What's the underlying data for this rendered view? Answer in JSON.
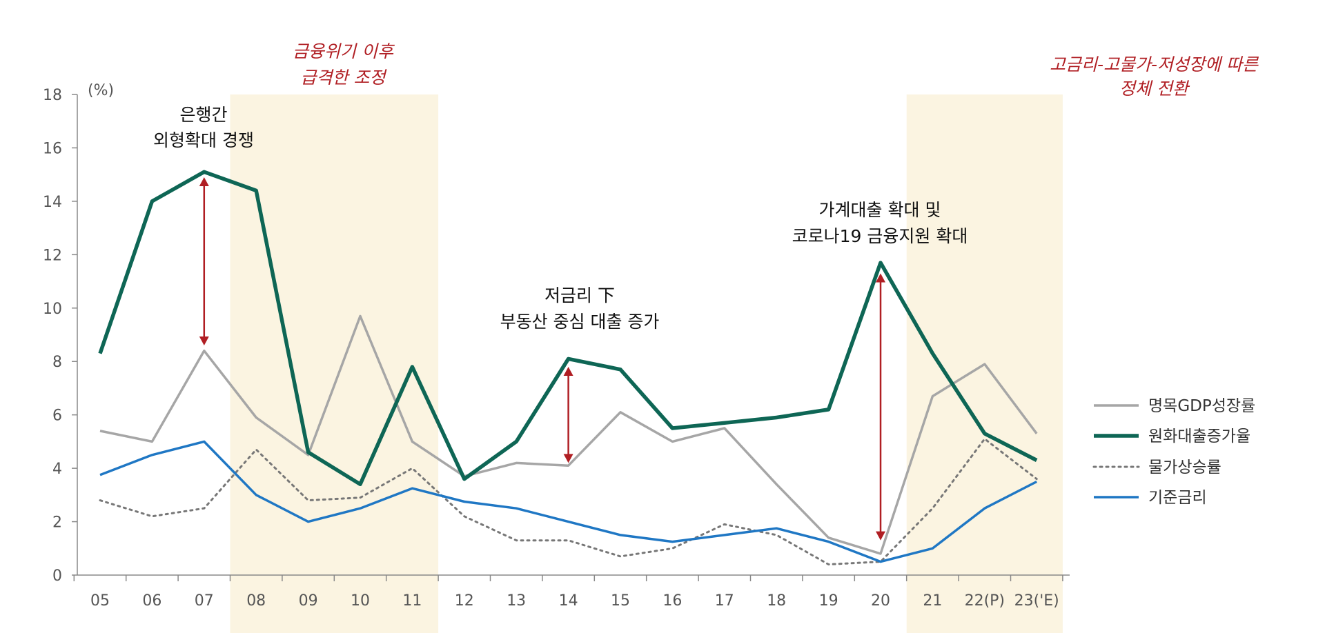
{
  "chart_data": {
    "type": "line",
    "y_unit": "(%)",
    "ylim": [
      0,
      18
    ],
    "y_ticks": [
      "0",
      "2",
      "4",
      "6",
      "8",
      "10",
      "12",
      "14",
      "16",
      "18"
    ],
    "categories": [
      "05",
      "06",
      "07",
      "08",
      "09",
      "10",
      "11",
      "12",
      "13",
      "14",
      "15",
      "16",
      "17",
      "18",
      "19",
      "20",
      "21",
      "22(P)",
      "23('E)"
    ],
    "series": [
      {
        "name": "명목GDP성장률",
        "color": "#a6a6a6",
        "style": "solid",
        "values": [
          5.4,
          5.0,
          8.4,
          5.9,
          4.5,
          9.7,
          5.0,
          3.7,
          4.2,
          4.1,
          6.1,
          5.0,
          5.5,
          3.4,
          1.4,
          0.8,
          6.7,
          7.9,
          5.3
        ]
      },
      {
        "name": "원화대출증가율",
        "color": "#0e6655",
        "style": "thick",
        "values": [
          8.3,
          14.0,
          15.1,
          14.4,
          4.6,
          3.4,
          7.8,
          3.6,
          5.0,
          8.1,
          7.7,
          5.5,
          5.7,
          5.9,
          6.2,
          11.7,
          8.3,
          5.3,
          4.3
        ]
      },
      {
        "name": "물가상승률",
        "color": "#777777",
        "style": "dotted",
        "values": [
          2.8,
          2.2,
          2.5,
          4.7,
          2.8,
          2.9,
          4.0,
          2.2,
          1.3,
          1.3,
          0.7,
          1.0,
          1.9,
          1.5,
          0.4,
          0.5,
          2.5,
          5.1,
          3.6
        ]
      },
      {
        "name": "기준금리",
        "color": "#1f77c4",
        "style": "solid",
        "values": [
          3.75,
          4.5,
          5.0,
          3.0,
          2.0,
          2.5,
          3.25,
          2.75,
          2.5,
          2.0,
          1.5,
          1.25,
          1.5,
          1.75,
          1.25,
          0.5,
          1.0,
          2.5,
          3.5
        ]
      }
    ],
    "shaded_periods": [
      {
        "from": "08",
        "to": "11"
      },
      {
        "from": "21",
        "to": "23('E)"
      }
    ],
    "arrows": [
      {
        "category": "07",
        "from": 8.6,
        "to": 14.9
      },
      {
        "category": "14",
        "from": 4.2,
        "to": 7.8
      },
      {
        "category": "20",
        "from": 1.3,
        "to": 11.3
      }
    ],
    "annotations": [
      {
        "id": "ann1",
        "lines": [
          "은행간",
          "외형확대 경쟁"
        ],
        "style": "black"
      },
      {
        "id": "ann2",
        "lines": [
          "저금리 下",
          "부동산 중심 대출 증가"
        ],
        "style": "black"
      },
      {
        "id": "ann3",
        "lines": [
          "가계대출 확대 및",
          "코로나19 금융지원 확대"
        ],
        "style": "black"
      },
      {
        "id": "ann4",
        "lines": [
          "금융위기 이후",
          "급격한 조정"
        ],
        "style": "red"
      },
      {
        "id": "ann5",
        "lines": [
          "고금리-고물가-저성장에 따른",
          "정체 전환"
        ],
        "style": "red"
      }
    ],
    "legend_position": "right"
  }
}
